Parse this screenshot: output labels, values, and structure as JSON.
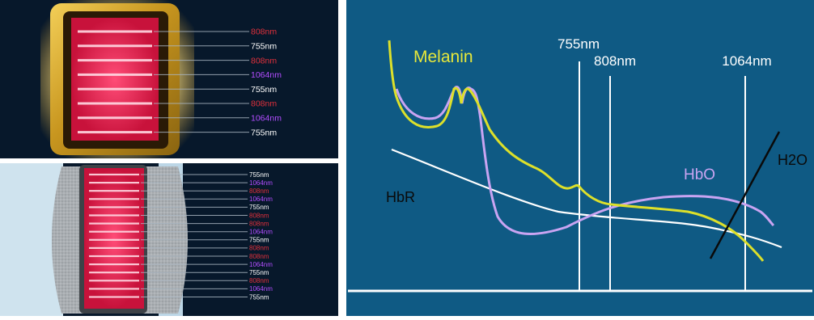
{
  "colors": {
    "panel_dark": "#07182b",
    "chart_bg": "#0f5a84",
    "laser_red": "#e81e4e",
    "gold_frame": "#c8961f",
    "silver_frame": "#b4b9bd",
    "label_red": "#e0303b",
    "label_white": "#ffffff",
    "label_purple": "#b24dff",
    "melanin": "#dde02a",
    "hbo": "#c9a4f2",
    "hbr": "#ffffff",
    "h2o": "#0a0a0a",
    "axis_line": "#ffffff"
  },
  "top_panel": {
    "wavelength_labels": [
      {
        "text": "808nm",
        "color": "#e0303b"
      },
      {
        "text": "755nm",
        "color": "#ffffff"
      },
      {
        "text": "808nm",
        "color": "#e0303b"
      },
      {
        "text": "1064nm",
        "color": "#b24dff"
      },
      {
        "text": "755nm",
        "color": "#ffffff"
      },
      {
        "text": "808nm",
        "color": "#e0303b"
      },
      {
        "text": "1064nm",
        "color": "#b24dff"
      },
      {
        "text": "755nm",
        "color": "#ffffff"
      }
    ]
  },
  "bottom_panel": {
    "wavelength_labels": [
      {
        "text": "755nm",
        "color": "#ffffff"
      },
      {
        "text": "1064nm",
        "color": "#b24dff"
      },
      {
        "text": "808nm",
        "color": "#e0303b"
      },
      {
        "text": "1064nm",
        "color": "#b24dff"
      },
      {
        "text": "755nm",
        "color": "#ffffff"
      },
      {
        "text": "808nm",
        "color": "#e0303b"
      },
      {
        "text": "808nm",
        "color": "#e0303b"
      },
      {
        "text": "1064nm",
        "color": "#b24dff"
      },
      {
        "text": "755nm",
        "color": "#ffffff"
      },
      {
        "text": "808nm",
        "color": "#e0303b"
      },
      {
        "text": "808nm",
        "color": "#e0303b"
      },
      {
        "text": "1064nm",
        "color": "#b24dff"
      },
      {
        "text": "755nm",
        "color": "#ffffff"
      },
      {
        "text": "808nm",
        "color": "#e0303b"
      },
      {
        "text": "1064nm",
        "color": "#b24dff"
      },
      {
        "text": "755nm",
        "color": "#ffffff"
      }
    ]
  },
  "chart": {
    "wavelength_markers": [
      "755nm",
      "808nm",
      "1064nm"
    ],
    "curve_labels": {
      "melanin": "Melanin",
      "hbo": "HbO",
      "hbr": "HbR",
      "h2o": "H2O"
    }
  }
}
